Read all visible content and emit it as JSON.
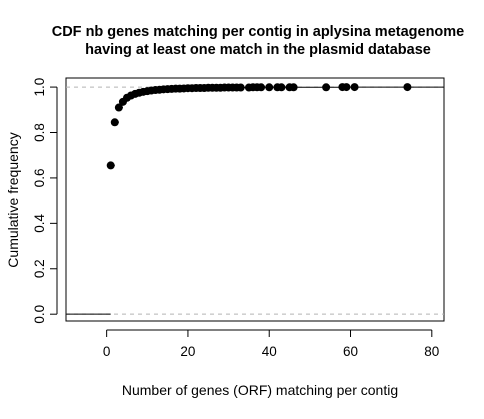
{
  "chart_data": {
    "type": "scatter",
    "title": "CDF nb genes matching per contig in aplysina metagenome having at least one match in the plasmid database",
    "title_lines": [
      "CDF nb genes matching per contig in aplysina metagenome",
      "having at least one match in the plasmid database"
    ],
    "xlabel": "Number of genes (ORF) matching per contig",
    "ylabel": "Cumulative frequency",
    "xlim": [
      -10,
      83
    ],
    "ylim": [
      -0.03,
      1.04
    ],
    "xticks": [
      0,
      20,
      40,
      60,
      80
    ],
    "yticks": [
      0.0,
      0.2,
      0.4,
      0.6,
      0.8,
      1.0
    ],
    "xtick_labels": [
      "0",
      "20",
      "40",
      "60",
      "80"
    ],
    "ytick_labels": [
      "0.0",
      "0.2",
      "0.4",
      "0.6",
      "0.8",
      "1.0"
    ],
    "grid": false,
    "reference_lines": [
      0,
      1
    ],
    "x": [
      1,
      2,
      3,
      4,
      5,
      6,
      7,
      8,
      9,
      10,
      11,
      12,
      13,
      14,
      15,
      16,
      17,
      18,
      19,
      20,
      21,
      22,
      23,
      24,
      25,
      26,
      27,
      28,
      29,
      30,
      31,
      32,
      33,
      35,
      36,
      37,
      38,
      40,
      42,
      43,
      45,
      46,
      54,
      58,
      59,
      61,
      74
    ],
    "y": [
      0.655,
      0.845,
      0.91,
      0.935,
      0.953,
      0.963,
      0.97,
      0.975,
      0.979,
      0.982,
      0.985,
      0.987,
      0.988,
      0.99,
      0.991,
      0.992,
      0.993,
      0.993,
      0.994,
      0.995,
      0.995,
      0.996,
      0.996,
      0.996,
      0.997,
      0.997,
      0.997,
      0.997,
      0.998,
      0.998,
      0.998,
      0.998,
      0.998,
      0.998,
      0.999,
      0.999,
      0.999,
      0.999,
      0.999,
      0.999,
      0.999,
      0.999,
      0.999,
      1.0,
      1.0,
      1.0,
      1.0
    ],
    "point_color": "#000000",
    "reference_line_color": "#b3b3b3"
  }
}
